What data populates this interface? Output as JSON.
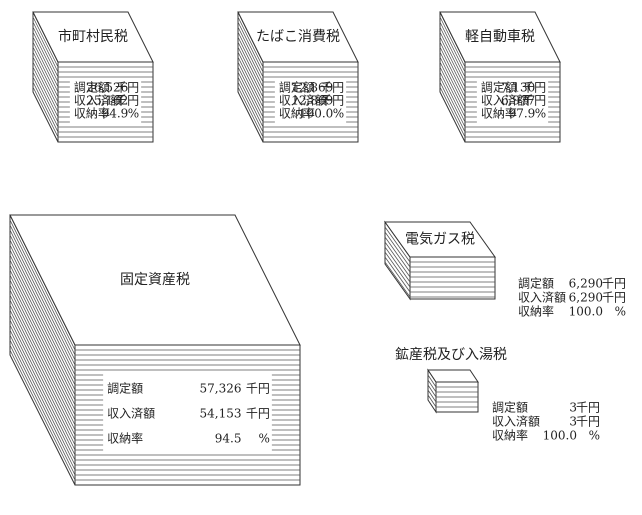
{
  "items": [
    {
      "name": "市町村民税",
      "rows": [
        {
          "label": "調定額",
          "value": "26,526",
          "unit": "千円"
        },
        {
          "label": "収入済額",
          "value": "25,162",
          "unit": "千円"
        },
        {
          "label": "収納率",
          "value": "94.9",
          "unit": "%"
        }
      ]
    },
    {
      "name": "たばこ消費税",
      "rows": [
        {
          "label": "調定額",
          "value": "12,869",
          "unit": "千円"
        },
        {
          "label": "収入済額",
          "value": "12,869",
          "unit": "千円"
        },
        {
          "label": "収納率",
          "value": "100.0",
          "unit": "%"
        }
      ]
    },
    {
      "name": "軽自動車税",
      "rows": [
        {
          "label": "調定額",
          "value": "7,130",
          "unit": "千円"
        },
        {
          "label": "収入済額",
          "value": "6,977",
          "unit": "千円"
        },
        {
          "label": "収納率",
          "value": "97.9",
          "unit": "%"
        }
      ]
    },
    {
      "name": "固定資産税",
      "rows": [
        {
          "label": "調定額",
          "value": "57,326",
          "unit": "千円"
        },
        {
          "label": "収入済額",
          "value": "54,153",
          "unit": "千円"
        },
        {
          "label": "収納率",
          "value": "94.5",
          "unit": "%"
        }
      ]
    },
    {
      "name": "電気ガス税",
      "rows": [
        {
          "label": "調定額",
          "value": "6,290",
          "unit": "千円"
        },
        {
          "label": "収入済額",
          "value": "6,290",
          "unit": "千円"
        },
        {
          "label": "収納率",
          "value": "100.0",
          "unit": "%"
        }
      ]
    },
    {
      "name": "鉱産税及び入湯税",
      "rows": [
        {
          "label": "調定額",
          "value": "3",
          "unit": "千円"
        },
        {
          "label": "収入済額",
          "value": "3",
          "unit": "千円"
        },
        {
          "label": "収納率",
          "value": "100.0",
          "unit": "%"
        }
      ]
    }
  ]
}
